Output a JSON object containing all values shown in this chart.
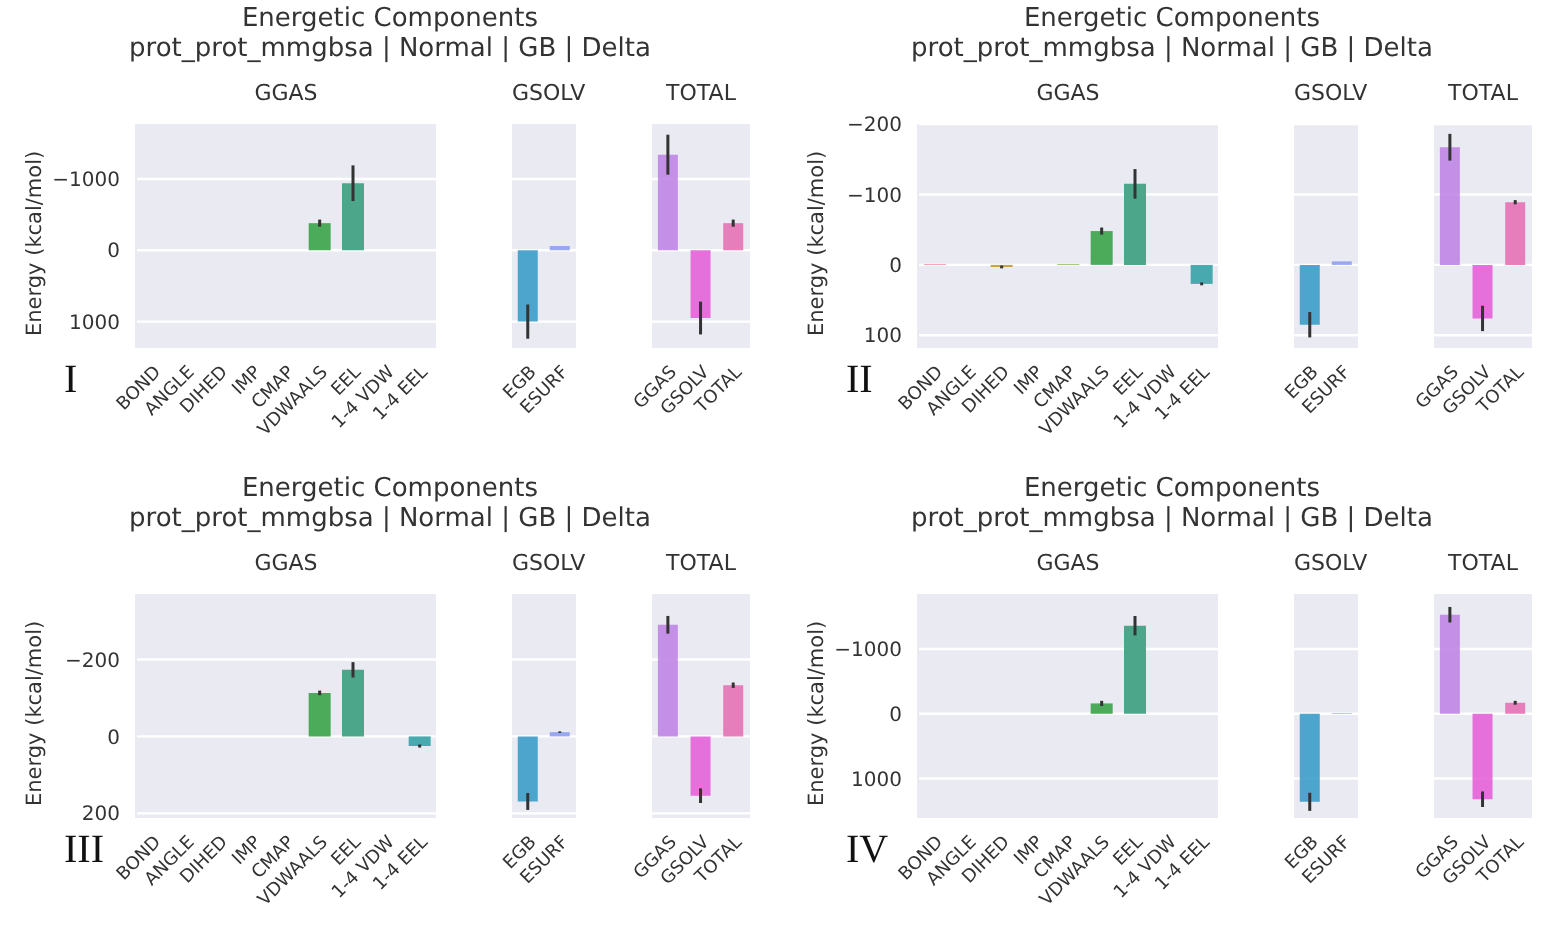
{
  "chart_data": [
    {
      "type": "bar",
      "title": "GGAS",
      "ylabel": "Energy (kcal/mol)",
      "annotations": [
        "Energetic Components",
        "prot_prot_mmgbsa | Normal | GB | Delta",
        "I"
      ],
      "categories": [
        "BOND",
        "ANGLE",
        "DIHED",
        "IMP",
        "CMAP",
        "VDWAALS",
        "EEL",
        "1-4 VDW",
        "1-4 EEL"
      ],
      "values": [
        0,
        0,
        0,
        0,
        0,
        -380,
        -940,
        0,
        0
      ],
      "errors": [
        null,
        null,
        null,
        null,
        null,
        50,
        250,
        null,
        null
      ],
      "colors": [
        "#f77189",
        "#dc8932",
        "#c59b32",
        "#9ea532",
        "#6fad32",
        "#3ba34a",
        "#3a9e7e",
        "#37abaa",
        "#36a3a6"
      ],
      "ylim": [
        1370,
        -1770
      ],
      "yticks": [
        {
          "value": 1000,
          "label": "1000"
        },
        0,
        {
          "value": -1000,
          "label": "−1000"
        }
      ],
      "grid": "y"
    },
    {
      "type": "bar",
      "title": "GSOLV",
      "categories": [
        "EGB",
        "ESURF"
      ],
      "values": [
        1000,
        -60
      ],
      "errors": [
        240,
        null
      ],
      "colors": [
        "#3c9dc9",
        "#8fa0f0"
      ],
      "ylim": [
        1370,
        -1770
      ],
      "yticks": [
        1000,
        0,
        -1000
      ],
      "grid": "y",
      "tick_labels": "x"
    },
    {
      "type": "bar",
      "title": "TOTAL",
      "categories": [
        "GGAS",
        "GSOLV",
        "TOTAL"
      ],
      "values": [
        -1340,
        950,
        -380
      ],
      "errors": [
        280,
        230,
        50
      ],
      "colors": [
        "#c086e6",
        "#e463d8",
        "#e472b4"
      ],
      "ylim": [
        1370,
        -1770
      ],
      "yticks": [
        1000,
        0,
        -1000
      ],
      "grid": "y",
      "tick_labels": "x"
    },
    {
      "type": "bar",
      "title": "GGAS",
      "ylabel": "Energy (kcal/mol)",
      "annotations": [
        "Energetic Components",
        "prot_prot_mmgbsa | Normal | GB | Delta",
        "II"
      ],
      "categories": [
        "BOND",
        "ANGLE",
        "DIHED",
        "IMP",
        "CMAP",
        "VDWAALS",
        "EEL",
        "1-4 VDW",
        "1-4 EEL"
      ],
      "values": [
        -1,
        0,
        3,
        0,
        -1,
        -48,
        -115,
        0,
        27
      ],
      "errors": [
        null,
        null,
        2,
        null,
        null,
        5,
        21,
        null,
        2
      ],
      "colors": [
        "#f77189",
        "#dc8932",
        "#c59b32",
        "#9ea532",
        "#6fad32",
        "#3ba34a",
        "#3a9e7e",
        "#37abaa",
        "#36a3a6"
      ],
      "ylim": [
        118,
        -200
      ],
      "yticks": [
        100,
        0,
        {
          "value": -100,
          "label": "−100"
        },
        {
          "value": -200,
          "label": "−200"
        }
      ],
      "grid": "y"
    },
    {
      "type": "bar",
      "title": "GSOLV",
      "categories": [
        "EGB",
        "ESURF"
      ],
      "values": [
        85,
        -5
      ],
      "errors": [
        18,
        null
      ],
      "colors": [
        "#3c9dc9",
        "#8fa0f0"
      ],
      "ylim": [
        118,
        -200
      ],
      "yticks": [
        100,
        0,
        -100,
        -200
      ],
      "grid": "y",
      "tick_labels": "x"
    },
    {
      "type": "bar",
      "title": "TOTAL",
      "categories": [
        "GGAS",
        "GSOLV",
        "TOTAL"
      ],
      "values": [
        -167,
        76,
        -89
      ],
      "errors": [
        19,
        18,
        3
      ],
      "colors": [
        "#c086e6",
        "#e463d8",
        "#e472b4"
      ],
      "ylim": [
        118,
        -200
      ],
      "yticks": [
        100,
        0,
        -100,
        -200
      ],
      "grid": "y",
      "tick_labels": "x"
    },
    {
      "type": "bar",
      "title": "GGAS",
      "ylabel": "Energy (kcal/mol)",
      "annotations": [
        "Energetic Components",
        "prot_prot_mmgbsa | Normal | GB | Delta",
        "III"
      ],
      "categories": [
        "BOND",
        "ANGLE",
        "DIHED",
        "IMP",
        "CMAP",
        "VDWAALS",
        "EEL",
        "1-4 VDW",
        "1-4 EEL"
      ],
      "values": [
        0,
        0,
        0,
        0,
        0,
        -113,
        -173,
        0,
        25
      ],
      "errors": [
        null,
        null,
        null,
        null,
        null,
        6,
        20,
        null,
        4
      ],
      "colors": [
        "#f77189",
        "#dc8932",
        "#c59b32",
        "#9ea532",
        "#6fad32",
        "#3ba34a",
        "#3a9e7e",
        "#37abaa",
        "#36a3a6"
      ],
      "ylim": [
        212,
        -370
      ],
      "yticks": [
        200,
        0,
        {
          "value": -200,
          "label": "−200"
        }
      ],
      "grid": "y"
    },
    {
      "type": "bar",
      "title": "GSOLV",
      "categories": [
        "EGB",
        "ESURF"
      ],
      "values": [
        169,
        -11
      ],
      "errors": [
        22,
        2
      ],
      "colors": [
        "#3c9dc9",
        "#8fa0f0"
      ],
      "ylim": [
        212,
        -370
      ],
      "yticks": [
        200,
        0,
        -200
      ],
      "grid": "y",
      "tick_labels": "x"
    },
    {
      "type": "bar",
      "title": "TOTAL",
      "categories": [
        "GGAS",
        "GSOLV",
        "TOTAL"
      ],
      "values": [
        -290,
        154,
        -133
      ],
      "errors": [
        23,
        19,
        7
      ],
      "colors": [
        "#c086e6",
        "#e463d8",
        "#e472b4"
      ],
      "ylim": [
        212,
        -370
      ],
      "yticks": [
        200,
        0,
        -200
      ],
      "grid": "y",
      "tick_labels": "x"
    },
    {
      "type": "bar",
      "title": "GGAS",
      "ylabel": "Energy (kcal/mol)",
      "annotations": [
        "Energetic Components",
        "prot_prot_mmgbsa | Normal | GB | Delta",
        "IV"
      ],
      "categories": [
        "BOND",
        "ANGLE",
        "DIHED",
        "IMP",
        "CMAP",
        "VDWAALS",
        "EEL",
        "1-4 VDW",
        "1-4 EEL"
      ],
      "values": [
        0,
        0,
        0,
        0,
        0,
        -160,
        -1360,
        0,
        0
      ],
      "errors": [
        null,
        null,
        null,
        null,
        null,
        40,
        150,
        null,
        null
      ],
      "colors": [
        "#f77189",
        "#dc8932",
        "#c59b32",
        "#9ea532",
        "#6fad32",
        "#3ba34a",
        "#3a9e7e",
        "#37abaa",
        "#36a3a6"
      ],
      "ylim": [
        1610,
        -1850
      ],
      "yticks": [
        {
          "value": 1000,
          "label": "1000"
        },
        0,
        {
          "value": -1000,
          "label": "−1000"
        }
      ],
      "grid": "y"
    },
    {
      "type": "bar",
      "title": "GSOLV",
      "categories": [
        "EGB",
        "ESURF"
      ],
      "values": [
        1360,
        -10
      ],
      "errors": [
        140,
        null
      ],
      "colors": [
        "#3c9dc9",
        "#8fa0f0"
      ],
      "ylim": [
        1610,
        -1850
      ],
      "yticks": [
        1000,
        0,
        -1000
      ],
      "grid": "y",
      "tick_labels": "x"
    },
    {
      "type": "bar",
      "title": "TOTAL",
      "categories": [
        "GGAS",
        "GSOLV",
        "TOTAL"
      ],
      "values": [
        -1530,
        1320,
        -170
      ],
      "errors": [
        120,
        120,
        30
      ],
      "colors": [
        "#c086e6",
        "#e463d8",
        "#e472b4"
      ],
      "ylim": [
        1610,
        -1850
      ],
      "yticks": [
        1000,
        0,
        -1000
      ],
      "grid": "y",
      "tick_labels": "x"
    }
  ]
}
